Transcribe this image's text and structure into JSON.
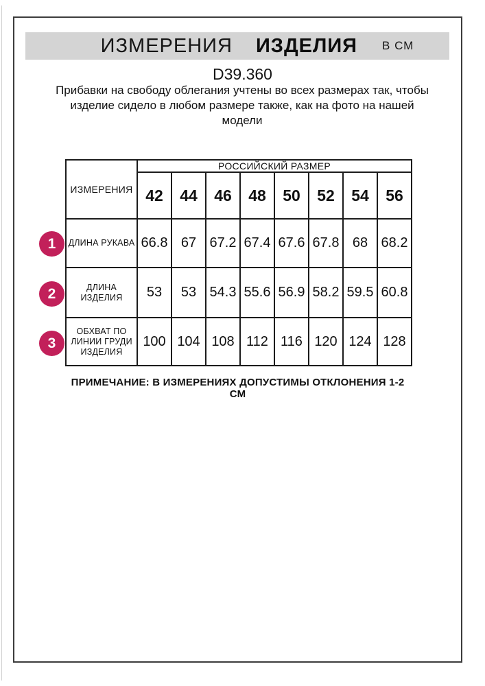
{
  "header": {
    "title_word1": "ИЗМЕРЕНИЯ",
    "title_word2": "ИЗДЕЛИЯ",
    "units": "В СМ",
    "product_code": "D39.360",
    "description": "Прибавки на свободу облегания учтены во всех размерах так, чтобы изделие сидело в любом размере также, как на фото на нашей модели"
  },
  "table": {
    "corner_header": "ИЗМЕРЕНИЯ",
    "size_group_header": "РОССИЙСКИЙ РАЗМЕР",
    "sizes": [
      "42",
      "44",
      "46",
      "48",
      "50",
      "52",
      "54",
      "56"
    ],
    "rows": [
      {
        "num": "1",
        "label_lines": [
          "ДЛИНА РУКАВА"
        ],
        "values": [
          "66.8",
          "67",
          "67.2",
          "67.4",
          "67.6",
          "67.8",
          "68",
          "68.2"
        ]
      },
      {
        "num": "2",
        "label_lines": [
          "ДЛИНА",
          "ИЗДЕЛИЯ"
        ],
        "values": [
          "53",
          "53",
          "54.3",
          "55.6",
          "56.9",
          "58.2",
          "59.5",
          "60.8"
        ]
      },
      {
        "num": "3",
        "label_lines": [
          "ОБХВАТ ПО",
          "ЛИНИИ ГРУДИ",
          "ИЗДЕЛИЯ"
        ],
        "values": [
          "100",
          "104",
          "108",
          "112",
          "116",
          "120",
          "124",
          "128"
        ]
      }
    ]
  },
  "note": "ПРИМЕЧАНИЕ: В ИЗМЕРЕНИЯХ ДОПУСТИМЫ ОТКЛОНЕНИЯ 1-2 СМ",
  "colors": {
    "accent_circle": "#c2205a",
    "title_bar_bg": "#d4d4d4",
    "frame_border": "#3c3c3c"
  }
}
